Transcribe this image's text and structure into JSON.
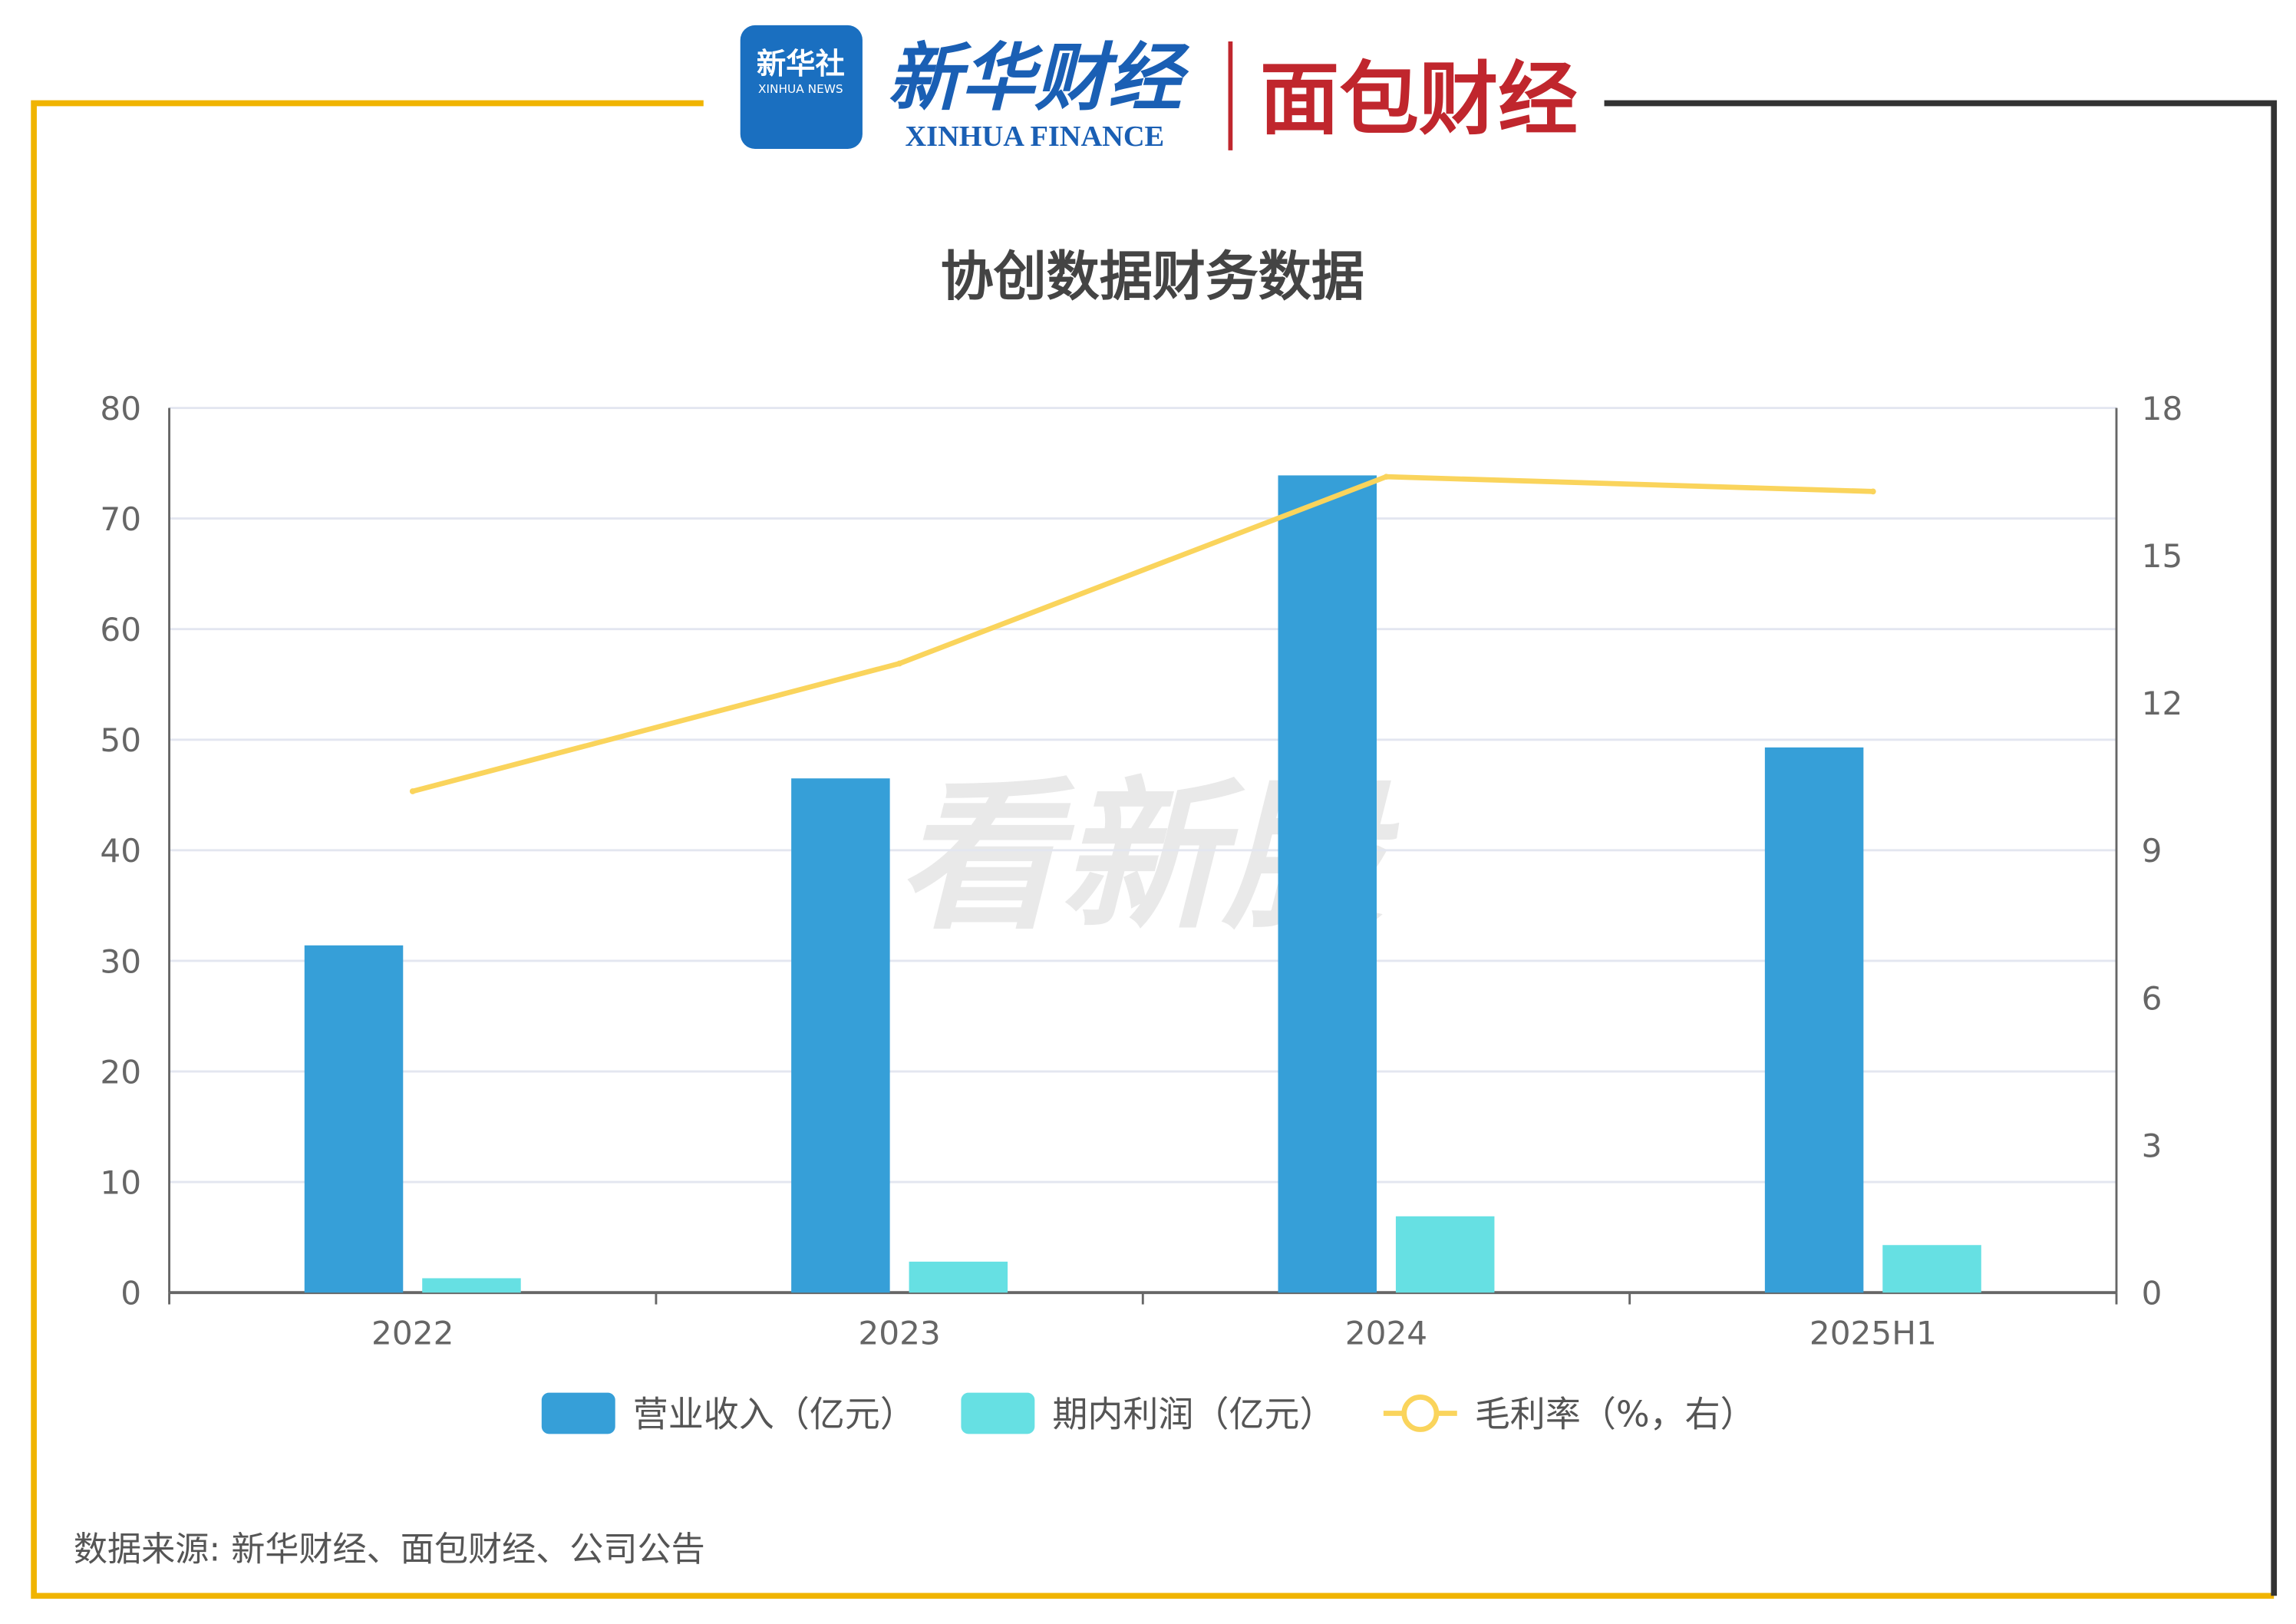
{
  "header": {
    "logo_xinhua_news": "新华社",
    "logo_xinhua_news_en": "XINHUA NEWS",
    "logo_xinhua_finance": "新华财经",
    "logo_xinhua_finance_en": "XINHUA FINANCE",
    "logo_mianbao": "面包财经",
    "watermark": "看新股"
  },
  "colors": {
    "frame_yellow": "#f0b400",
    "frame_dark": "#333333",
    "revenue": "#369fd8",
    "profit": "#66e0e3",
    "margin": "#fad45c"
  },
  "footer": {
    "source": "数据来源: 新华财经、面包财经、公司公告"
  },
  "chart_data": {
    "type": "bar+line",
    "title": "协创数据财务数据",
    "categories": [
      "2022",
      "2023",
      "2024",
      "2025H1"
    ],
    "left_axis": {
      "ylim": [
        0,
        80
      ],
      "ticks": [
        "0",
        "10",
        "20",
        "30",
        "40",
        "50",
        "60",
        "70",
        "80"
      ]
    },
    "right_axis": {
      "ylim": [
        0,
        18
      ],
      "ticks": [
        "0",
        "3",
        "6",
        "9",
        "12",
        "15",
        "18"
      ]
    },
    "grid": true,
    "legend_placement": "bottom",
    "series": [
      {
        "name": "营业收入（亿元）",
        "type": "bar",
        "axis": "left",
        "values": [
          31.4,
          46.5,
          73.9,
          49.3
        ]
      },
      {
        "name": "期内利润（亿元）",
        "type": "bar",
        "axis": "left",
        "values": [
          1.3,
          2.8,
          6.9,
          4.3
        ]
      },
      {
        "name": "毛利率（%，右）",
        "type": "line",
        "axis": "right",
        "values": [
          10.2,
          12.8,
          16.6,
          16.3
        ]
      }
    ]
  }
}
